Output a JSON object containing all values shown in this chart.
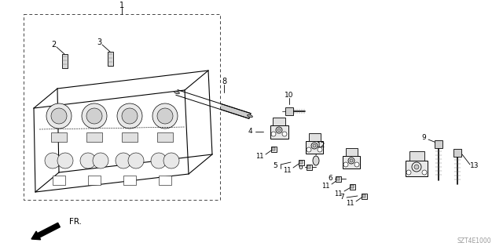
{
  "bg_color": "#ffffff",
  "line_color": "#000000",
  "fig_width": 6.4,
  "fig_height": 3.19,
  "dpi": 100,
  "diagram_code": "SZT4E1000",
  "fr_label": "FR."
}
